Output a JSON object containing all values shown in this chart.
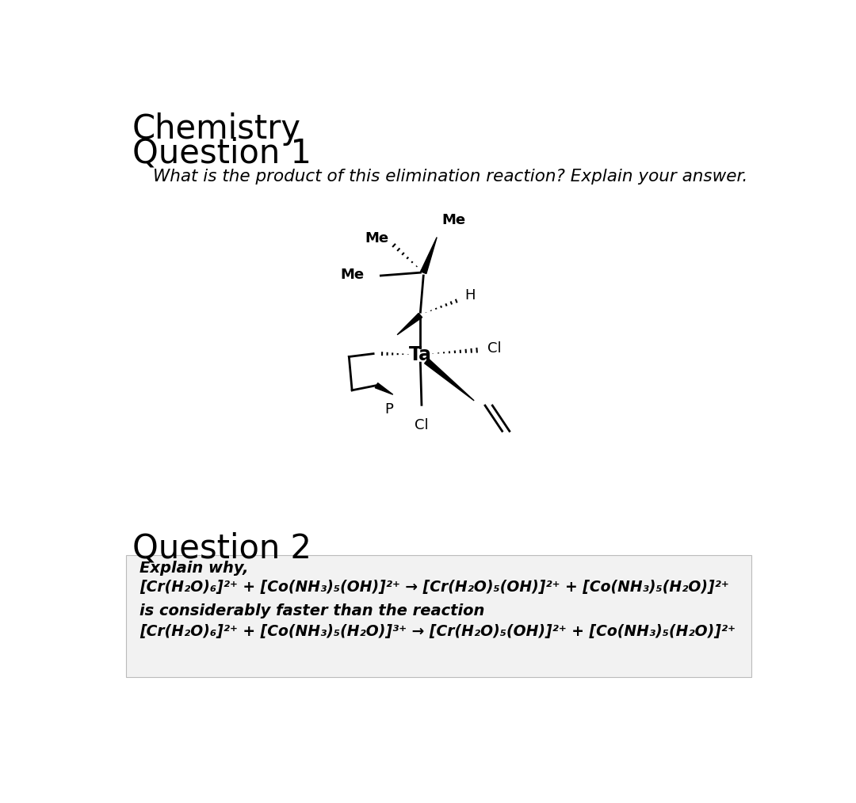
{
  "title": "Chemistry",
  "q1_label": "Question 1",
  "q1_text": "What is the product of this elimination reaction? Explain your answer.",
  "q2_label": "Question 2",
  "q2_explain": "Explain why,",
  "q2_faster": "is considerably faster than the reaction",
  "bg_color": "#ffffff",
  "text_color": "#000000"
}
